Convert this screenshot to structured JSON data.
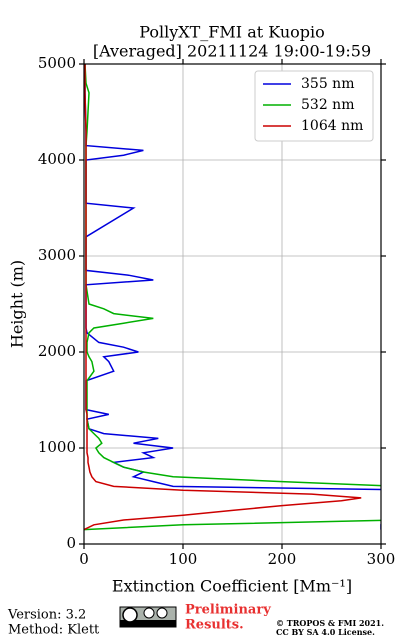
{
  "chart_data": {
    "type": "line",
    "title": "PollyXT_FMI at Kuopio",
    "subtitle": "[Averaged] 20211124 19:00-19:59",
    "x_label": "Extinction Coefficient [Mm⁻¹]",
    "y_label": "Height (m)",
    "y": [
      150,
      200,
      250,
      300,
      350,
      400,
      450,
      480,
      520,
      560,
      600,
      650,
      700,
      750,
      800,
      850,
      900,
      950,
      1000,
      1050,
      1100,
      1150,
      1200,
      1300,
      1350,
      1400,
      1500,
      1700,
      1800,
      1900,
      1950,
      2000,
      2050,
      2100,
      2200,
      2250,
      2300,
      2350,
      2400,
      2450,
      2500,
      2700,
      2750,
      2800,
      2850,
      2900,
      3200,
      3500,
      3550,
      3600,
      4000,
      4050,
      4100,
      4150,
      4300,
      4700,
      4800,
      5000
    ],
    "series": [
      {
        "name": "355 nm",
        "color": "#0000dd",
        "values": [
          300,
          300,
          350,
          350,
          350,
          350,
          350,
          350,
          350,
          350,
          90,
          70,
          50,
          60,
          40,
          30,
          70,
          60,
          90,
          50,
          75,
          20,
          5,
          3,
          25,
          2,
          2,
          2,
          30,
          25,
          20,
          55,
          40,
          15,
          3,
          2,
          2,
          2,
          2,
          2,
          2,
          2,
          70,
          45,
          2,
          2,
          2,
          50,
          2,
          2,
          2,
          40,
          60,
          2,
          2,
          1,
          1,
          1
        ]
      },
      {
        "name": "532 nm",
        "color": "#00b000",
        "values": [
          0,
          100,
          320,
          320,
          320,
          320,
          320,
          320,
          320,
          320,
          320,
          200,
          90,
          60,
          40,
          30,
          20,
          15,
          12,
          18,
          15,
          10,
          5,
          3,
          3,
          3,
          3,
          3,
          10,
          8,
          5,
          3,
          3,
          3,
          5,
          10,
          40,
          70,
          30,
          20,
          5,
          2,
          2,
          2,
          2,
          2,
          2,
          2,
          2,
          2,
          2,
          2,
          2,
          2,
          3,
          5,
          2,
          1
        ]
      },
      {
        "name": "1064 nm",
        "color": "#cc0000",
        "values": [
          0,
          10,
          40,
          100,
          150,
          200,
          260,
          280,
          230,
          100,
          30,
          12,
          8,
          6,
          5,
          4,
          4,
          3,
          3,
          3,
          3,
          3,
          3,
          3,
          3,
          2,
          2,
          2,
          2,
          2,
          2,
          2,
          2,
          2,
          2,
          2,
          2,
          2,
          2,
          2,
          2,
          2,
          2,
          2,
          2,
          2,
          2,
          2,
          2,
          2,
          2,
          2,
          2,
          2,
          2,
          1,
          1,
          1
        ]
      }
    ],
    "xlim": [
      0,
      300
    ],
    "xticks": [
      0,
      100,
      200,
      300
    ],
    "ylim": [
      0,
      5000
    ],
    "yticks": [
      0,
      1000,
      2000,
      3000,
      4000,
      5000
    ],
    "grid": true,
    "legend": "upper right"
  },
  "footer": {
    "version": "Version: 3.2",
    "method": "Method: Klett",
    "notice": [
      "Preliminary",
      "Results."
    ],
    "copyright": "© TROPOS & FMI 2021.",
    "license": "CC BY SA 4.0 License."
  }
}
